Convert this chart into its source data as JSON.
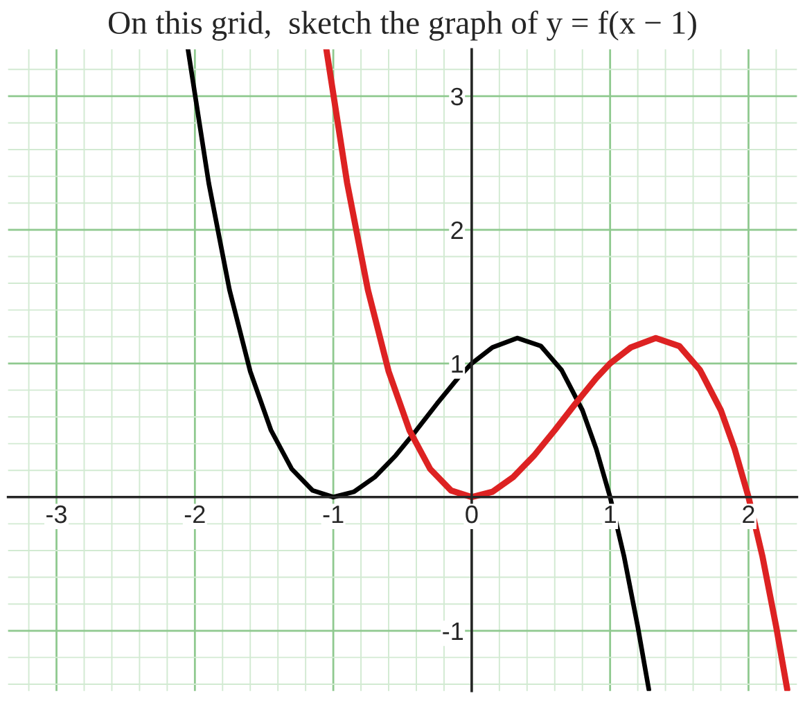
{
  "chart_data": {
    "type": "line",
    "title": "On this grid,  sketch the graph of y = f(x − 1)",
    "xlim": [
      -3.35,
      2.35
    ],
    "ylim": [
      -1.45,
      3.35
    ],
    "xticks": [
      -3,
      -2,
      -1,
      0,
      1,
      2
    ],
    "yticks": [
      -1,
      1,
      2,
      3
    ],
    "grid": true,
    "series": [
      {
        "color": "#000000",
        "x": [
          -2.05,
          -1.9,
          -1.75,
          -1.6,
          -1.45,
          -1.3,
          -1.15,
          -1,
          -0.85,
          -0.7,
          -0.55,
          -0.4,
          -0.25,
          -0.1,
          0,
          0.15,
          0.33,
          0.5,
          0.65,
          0.8,
          0.9,
          1,
          1.1,
          1.2,
          1.28
        ],
        "values": [
          3.35,
          2.35,
          1.55,
          0.94,
          0.5,
          0.21,
          0.05,
          0,
          0.04,
          0.15,
          0.31,
          0.5,
          0.7,
          0.89,
          1,
          1.12,
          1.19,
          1.13,
          0.95,
          0.65,
          0.36,
          0,
          -0.44,
          -0.97,
          -1.44
        ]
      },
      {
        "color": "#dd2222",
        "x": [
          -1.05,
          -0.9,
          -0.75,
          -0.6,
          -0.45,
          -0.3,
          -0.15,
          0,
          0.15,
          0.3,
          0.45,
          0.6,
          0.75,
          0.9,
          1,
          1.15,
          1.33,
          1.5,
          1.65,
          1.8,
          1.9,
          2,
          2.1,
          2.2,
          2.28
        ],
        "values": [
          3.35,
          2.35,
          1.55,
          0.94,
          0.5,
          0.21,
          0.05,
          0,
          0.04,
          0.15,
          0.31,
          0.5,
          0.7,
          0.89,
          1,
          1.12,
          1.19,
          1.13,
          0.95,
          0.65,
          0.36,
          0,
          -0.44,
          -0.97,
          -1.44
        ]
      }
    ]
  }
}
